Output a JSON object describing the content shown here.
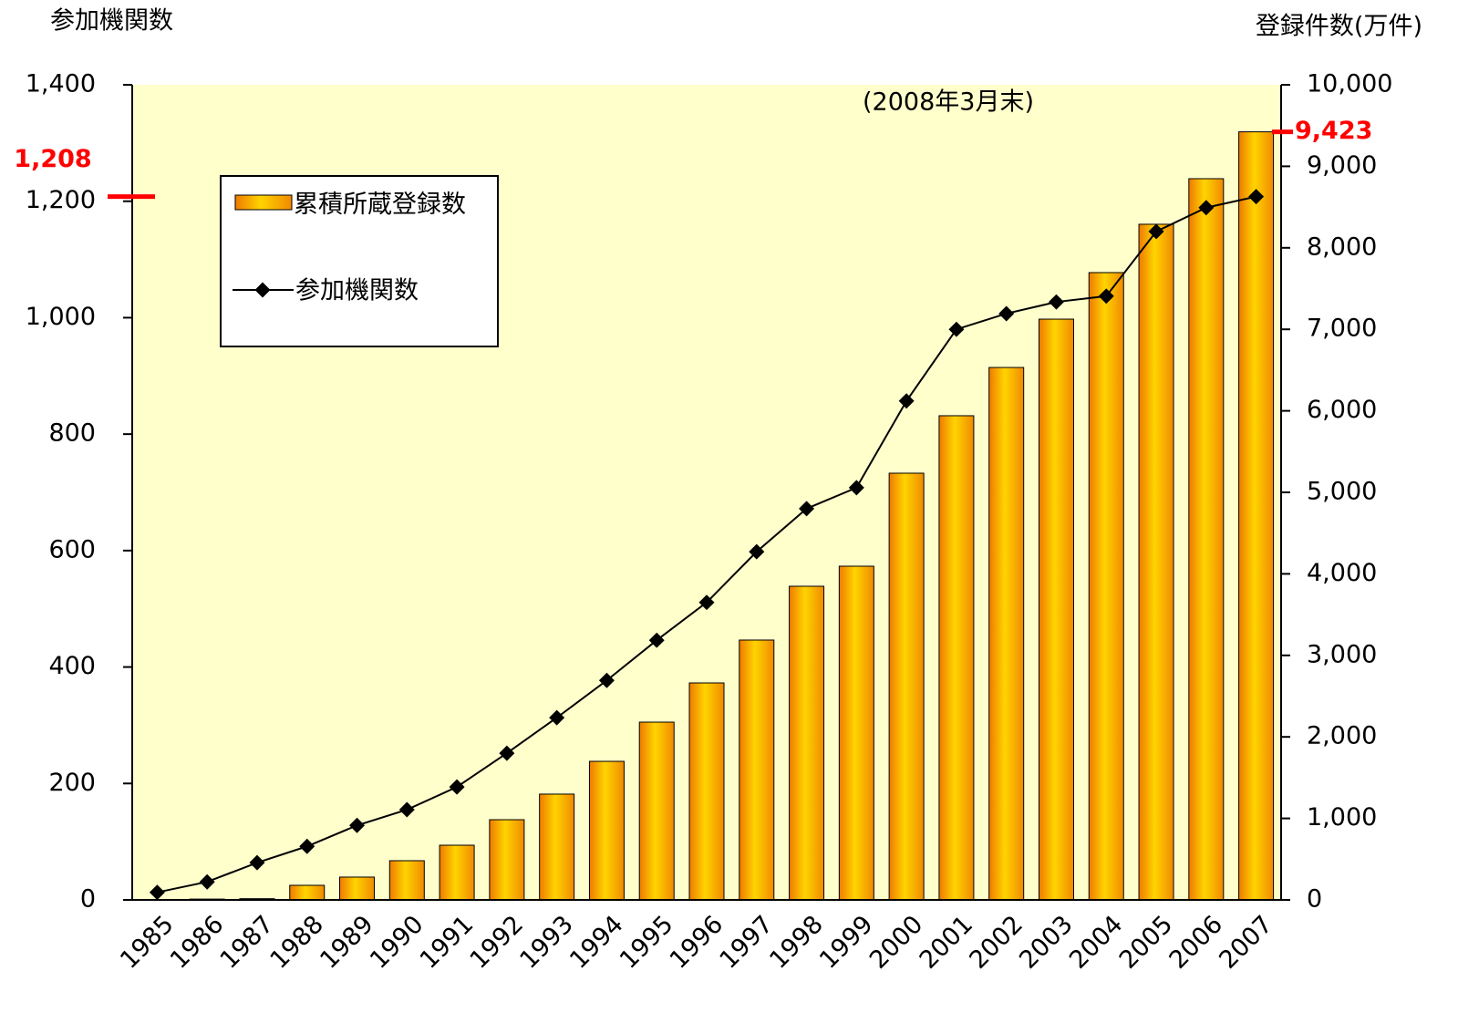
{
  "chart_data": {
    "type": "bar-line",
    "y_label": "参加機関数",
    "y2_label": "登録件数(万件)",
    "annotation": "(2008年3月末)",
    "categories": [
      "1985",
      "1986",
      "1987",
      "1988",
      "1989",
      "1990",
      "1991",
      "1992",
      "1993",
      "1994",
      "1995",
      "1996",
      "1997",
      "1998",
      "1999",
      "2000",
      "2001",
      "2002",
      "2003",
      "2004",
      "2005",
      "2006",
      "2007"
    ],
    "series": [
      {
        "name": "累積所蔵登録数",
        "type": "bar",
        "axis": "y2",
        "color": "#f5a000",
        "values": [
          5,
          10,
          15,
          179,
          280,
          481,
          671,
          984,
          1298,
          1700,
          2181,
          2662,
          3188,
          3848,
          4094,
          5235,
          5940,
          6532,
          7125,
          7696,
          8289,
          8848,
          9423
        ]
      },
      {
        "name": "参加機関数",
        "type": "line",
        "axis": "y",
        "color": "#000000",
        "values": [
          13,
          31,
          64,
          92,
          128,
          155,
          194,
          252,
          313,
          377,
          446,
          511,
          598,
          672,
          708,
          857,
          980,
          1007,
          1027,
          1037,
          1148,
          1189,
          1208
        ]
      }
    ],
    "ylim": [
      0,
      1400
    ],
    "yticks": [
      0,
      200,
      400,
      600,
      800,
      {
        "value": 1000,
        "label": "1,000"
      },
      {
        "value": 1200,
        "label": "1,200"
      },
      {
        "value": 1400,
        "label": "1,400"
      }
    ],
    "y2lim": [
      0,
      10000
    ],
    "y2ticks": [
      0,
      {
        "value": 1000,
        "label": "1,000"
      },
      {
        "value": 2000,
        "label": "2,000"
      },
      {
        "value": 3000,
        "label": "3,000"
      },
      {
        "value": 4000,
        "label": "4,000"
      },
      {
        "value": 5000,
        "label": "5,000"
      },
      {
        "value": 6000,
        "label": "6,000"
      },
      {
        "value": 7000,
        "label": "7,000"
      },
      {
        "value": 8000,
        "label": "8,000"
      },
      {
        "value": 9000,
        "label": "9,000"
      },
      {
        "value": 10000,
        "label": "10,000"
      }
    ],
    "highlights": [
      {
        "value": 1208,
        "label": "1,208",
        "axis": "y"
      },
      {
        "value": 9423,
        "label": "9,423",
        "axis": "y2"
      }
    ],
    "highlight_color": "#ff0000",
    "plot_background": "#ffffcc"
  }
}
